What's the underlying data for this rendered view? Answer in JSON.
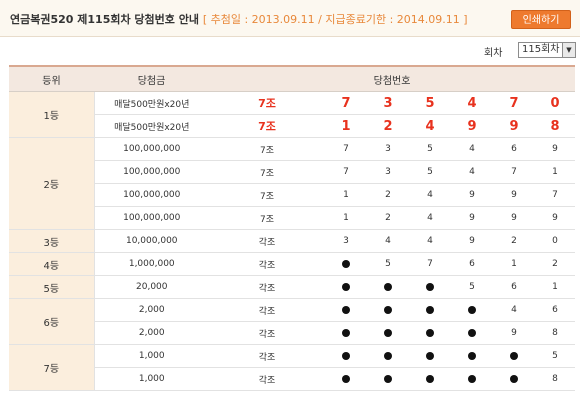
{
  "header": {
    "title": "연금복권520 제115회차 당첨번호 안내",
    "subtitle": "[ 추첨일 : 2013.09.11 / 지급종료기한 : 2014.09.11 ]",
    "print_label": "인쇄하기"
  },
  "round": {
    "label": "회차",
    "value": "115회차"
  },
  "table": {
    "headers": {
      "rank": "등위",
      "prize": "당첨금",
      "numbers": "당첨번호"
    },
    "ranks": [
      "1등",
      "2등",
      "3등",
      "4등",
      "5등",
      "6등",
      "7등"
    ],
    "rows": [
      {
        "amount": "매달500만원x20년",
        "prize": "7조",
        "numbers": [
          "7",
          "3",
          "5",
          "4",
          "7",
          "0"
        ]
      },
      {
        "amount": "매달500만원x20년",
        "prize": "7조",
        "numbers": [
          "1",
          "2",
          "4",
          "9",
          "9",
          "8"
        ]
      },
      {
        "amount": "100,000,000",
        "prize": "7조",
        "numbers": [
          "7",
          "3",
          "5",
          "4",
          "6",
          "9"
        ]
      },
      {
        "amount": "100,000,000",
        "prize": "7조",
        "numbers": [
          "7",
          "3",
          "5",
          "4",
          "7",
          "1"
        ]
      },
      {
        "amount": "100,000,000",
        "prize": "7조",
        "numbers": [
          "1",
          "2",
          "4",
          "9",
          "9",
          "7"
        ]
      },
      {
        "amount": "100,000,000",
        "prize": "7조",
        "numbers": [
          "1",
          "2",
          "4",
          "9",
          "9",
          "9"
        ]
      },
      {
        "amount": "10,000,000",
        "prize": "각조",
        "numbers": [
          "3",
          "4",
          "4",
          "9",
          "2",
          "0"
        ]
      },
      {
        "amount": "1,000,000",
        "prize": "각조",
        "numbers": [
          "●",
          "5",
          "7",
          "6",
          "1",
          "2"
        ]
      },
      {
        "amount": "20,000",
        "prize": "각조",
        "numbers": [
          "●",
          "●",
          "●",
          "5",
          "6",
          "1"
        ]
      },
      {
        "amount": "2,000",
        "prize": "각조",
        "numbers": [
          "●",
          "●",
          "●",
          "●",
          "4",
          "6"
        ]
      },
      {
        "amount": "2,000",
        "prize": "각조",
        "numbers": [
          "●",
          "●",
          "●",
          "●",
          "9",
          "8"
        ]
      },
      {
        "amount": "1,000",
        "prize": "각조",
        "numbers": [
          "●",
          "●",
          "●",
          "●",
          "●",
          "5"
        ]
      },
      {
        "amount": "1,000",
        "prize": "각조",
        "numbers": [
          "●",
          "●",
          "●",
          "●",
          "●",
          "8"
        ]
      }
    ]
  },
  "colors": {
    "accent": "#ee7a2e",
    "first_prize": "#e8321e",
    "rank_bg": "#fbeedd"
  }
}
